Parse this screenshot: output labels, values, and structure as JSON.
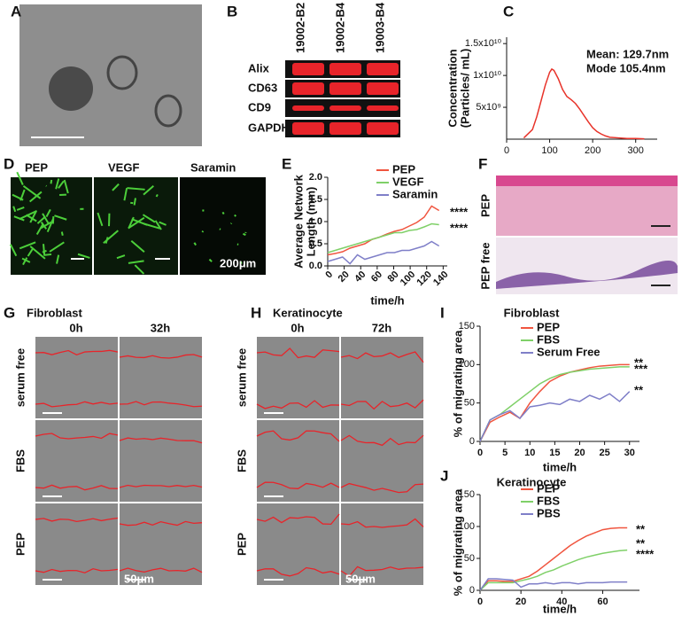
{
  "panels": {
    "labels": [
      "A",
      "B",
      "C",
      "D",
      "E",
      "F",
      "G",
      "H",
      "I",
      "J"
    ],
    "blot": {
      "lanes": [
        "19002-B2",
        "19002-B4",
        "19003-B4"
      ],
      "proteins": [
        "Alix",
        "CD63",
        "CD9",
        "GAPDH"
      ]
    },
    "tube": {
      "columns": [
        "PEP",
        "VEGF",
        "Saramin"
      ],
      "scale": "200μm"
    },
    "histology": {
      "rows": [
        "PEP",
        "PEP free"
      ]
    },
    "fibroblast": {
      "title": "Fibroblast",
      "columns": [
        "0h",
        "32h"
      ],
      "rows": [
        "serum free",
        "FBS",
        "PEP"
      ],
      "scale": "50μm"
    },
    "keratinocyte": {
      "title": "Keratinocyte",
      "columns": [
        "0h",
        "72h"
      ],
      "rows": [
        "serum free",
        "FBS",
        "PEP"
      ],
      "scale": "50μm"
    }
  },
  "chart_data": [
    {
      "type": "line",
      "y_label": [
        "Concentration",
        "(Particles/ mL)"
      ],
      "x": [
        40,
        60,
        70,
        80,
        90,
        100,
        105,
        110,
        120,
        130,
        140,
        150,
        160,
        170,
        180,
        190,
        200,
        210,
        220,
        230,
        240,
        260,
        280,
        300,
        320
      ],
      "series": [
        {
          "color": "#e8332a",
          "values": [
            200000000.0,
            1500000000.0,
            3500000000.0,
            6000000000.0,
            8500000000.0,
            10500000000.0,
            11000000000.0,
            10800000000.0,
            9500000000.0,
            7800000000.0,
            6700000000.0,
            6200000000.0,
            5600000000.0,
            4700000000.0,
            3700000000.0,
            2700000000.0,
            1800000000.0,
            1200000000.0,
            800000000.0,
            500000000.0,
            300000000.0,
            200000000.0,
            100000000.0,
            100000000.0,
            50000000.0
          ]
        }
      ],
      "xlim": [
        0,
        350
      ],
      "ylim": [
        0,
        16000000000.0
      ],
      "xticks": [
        0,
        100,
        200,
        300
      ],
      "yticks": [
        {
          "value": 5000000000.0,
          "label": "5x10⁹"
        },
        {
          "value": 10000000000.0,
          "label": "1x10¹⁰"
        },
        {
          "value": 15000000000.0,
          "label": "1.5x10¹⁰"
        }
      ],
      "annotations": [
        "Mean: 129.7nm",
        "Mode 105.4nm"
      ]
    },
    {
      "type": "line",
      "y_label": [
        "Average Network",
        "Length (mm)"
      ],
      "x_label": "time/h",
      "x": [
        0,
        9,
        18,
        27,
        36,
        45,
        54,
        63,
        72,
        81,
        90,
        99,
        108,
        117,
        126,
        135
      ],
      "series": [
        {
          "name": "PEP",
          "color": "#f0553f",
          "values": [
            0.25,
            0.28,
            0.32,
            0.4,
            0.45,
            0.5,
            0.6,
            0.65,
            0.72,
            0.78,
            0.82,
            0.9,
            0.98,
            1.1,
            1.35,
            1.25
          ]
        },
        {
          "name": "VEGF",
          "color": "#7fd068",
          "values": [
            0.3,
            0.35,
            0.4,
            0.45,
            0.5,
            0.55,
            0.6,
            0.65,
            0.7,
            0.75,
            0.75,
            0.8,
            0.82,
            0.88,
            0.95,
            0.93
          ]
        },
        {
          "name": "Saramin",
          "color": "#7f7fc8",
          "values": [
            0.1,
            0.15,
            0.2,
            0.05,
            0.25,
            0.15,
            0.2,
            0.25,
            0.3,
            0.3,
            0.35,
            0.35,
            0.4,
            0.45,
            0.55,
            0.45
          ]
        }
      ],
      "xlim": [
        0,
        145
      ],
      "ylim": [
        0,
        2
      ],
      "xticks": [
        0,
        20,
        40,
        60,
        80,
        100,
        120,
        140
      ],
      "yticks": [
        {
          "value": 0,
          "label": "0.0"
        },
        0.5,
        {
          "value": 1,
          "label": "1.0"
        },
        1.5,
        {
          "value": 2,
          "label": "2.0"
        }
      ],
      "annotations": [
        "****",
        "****"
      ]
    },
    {
      "type": "line",
      "title": "Fibroblast",
      "y_label": [
        "% of migrating area"
      ],
      "x_label": "time/h",
      "x": [
        0,
        2,
        4,
        6,
        8,
        10,
        12,
        14,
        16,
        18,
        20,
        22,
        24,
        26,
        28,
        30
      ],
      "series": [
        {
          "name": "PEP",
          "color": "#f0553f",
          "values": [
            0,
            25,
            32,
            38,
            30,
            50,
            65,
            78,
            85,
            90,
            93,
            96,
            98,
            99,
            100,
            100
          ]
        },
        {
          "name": "FBS",
          "color": "#7fd068",
          "values": [
            0,
            28,
            35,
            45,
            55,
            65,
            75,
            82,
            87,
            90,
            92,
            94,
            95,
            96,
            97,
            97
          ]
        },
        {
          "name": "Serum Free",
          "color": "#7f7fc8",
          "values": [
            0,
            28,
            35,
            40,
            30,
            45,
            47,
            50,
            48,
            55,
            52,
            60,
            55,
            62,
            52,
            65
          ]
        }
      ],
      "xlim": [
        0,
        32
      ],
      "ylim": [
        0,
        150
      ],
      "xticks": [
        0,
        5,
        10,
        15,
        20,
        25,
        30
      ],
      "yticks": [
        0,
        50,
        100,
        150
      ],
      "annotations": [
        "**",
        "***",
        "**"
      ]
    },
    {
      "type": "line",
      "title": "Keratinocyte",
      "y_label": [
        "% of migrating area"
      ],
      "x_label": "time/h",
      "x": [
        0,
        4,
        8,
        12,
        16,
        20,
        24,
        28,
        32,
        36,
        40,
        44,
        48,
        52,
        56,
        60,
        64,
        68,
        72
      ],
      "series": [
        {
          "name": "PEP",
          "color": "#f0553f",
          "values": [
            0,
            15,
            15,
            14,
            14,
            18,
            22,
            30,
            40,
            50,
            60,
            70,
            78,
            85,
            90,
            95,
            97,
            98,
            98
          ]
        },
        {
          "name": "FBS",
          "color": "#7fd068",
          "values": [
            0,
            12,
            12,
            12,
            12,
            15,
            18,
            22,
            28,
            32,
            38,
            43,
            48,
            52,
            55,
            58,
            60,
            62,
            63
          ]
        },
        {
          "name": "PBS",
          "color": "#7f7fc8",
          "values": [
            0,
            18,
            18,
            17,
            16,
            5,
            10,
            10,
            12,
            10,
            12,
            12,
            10,
            12,
            12,
            12,
            13,
            13,
            13
          ]
        }
      ],
      "xlim": [
        0,
        78
      ],
      "ylim": [
        0,
        150
      ],
      "xticks": [
        0,
        20,
        40,
        60
      ],
      "yticks": [
        0,
        50,
        100,
        150
      ],
      "annotations": [
        "**",
        "**",
        "****"
      ]
    }
  ]
}
